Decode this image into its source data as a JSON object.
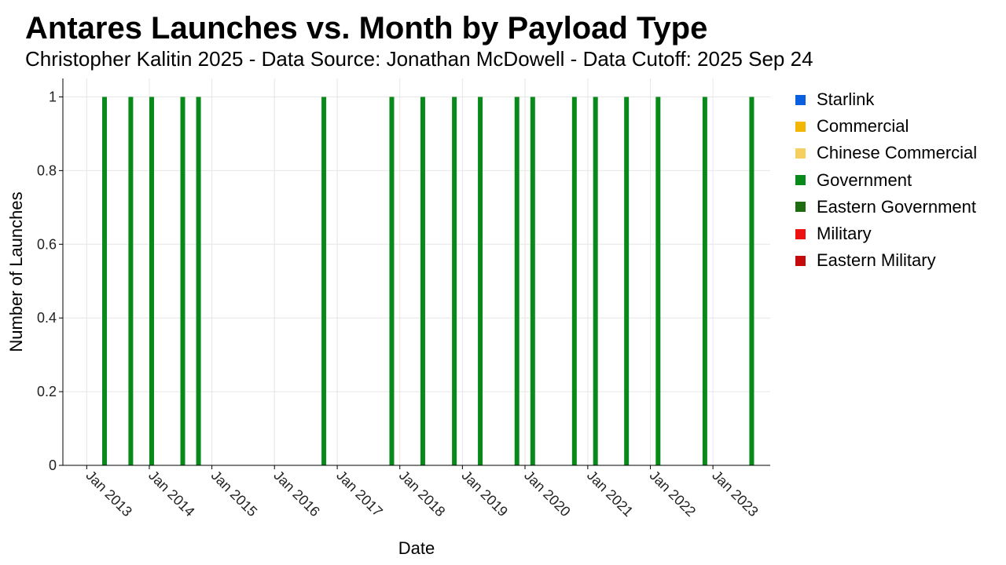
{
  "header": {
    "title": "Antares Launches vs. Month by Payload Type",
    "subtitle": "Christopher Kalitin 2025 - Data Source: Jonathan McDowell - Data Cutoff: 2025 Sep 24"
  },
  "chart_data": {
    "type": "bar",
    "title": "Antares Launches vs. Month by Payload Type",
    "subtitle": "Christopher Kalitin 2025 - Data Source: Jonathan McDowell - Data Cutoff: 2025 Sep 24",
    "xlabel": "Date",
    "ylabel": "Number of Launches",
    "ylim": [
      0,
      1.05
    ],
    "y_ticks": [
      0,
      0.2,
      0.4,
      0.6,
      0.8,
      1
    ],
    "y_tick_labels": [
      "0",
      "0.2",
      "0.4",
      "0.6",
      "0.8",
      "1"
    ],
    "x_range": [
      "2012-08-15",
      "2023-12-01"
    ],
    "x_ticks": [
      "2013-01-01",
      "2014-01-01",
      "2015-01-01",
      "2016-01-01",
      "2017-01-01",
      "2018-01-01",
      "2019-01-01",
      "2020-01-01",
      "2021-01-01",
      "2022-01-01",
      "2023-01-01"
    ],
    "x_tick_labels": [
      "Jan 2013",
      "Jan 2014",
      "Jan 2015",
      "Jan 2016",
      "Jan 2017",
      "Jan 2018",
      "Jan 2019",
      "Jan 2020",
      "Jan 2021",
      "Jan 2022",
      "Jan 2023"
    ],
    "grid": true,
    "legend_position": "right",
    "series": [
      {
        "name": "Starlink",
        "color": "#0a5ee0",
        "points": []
      },
      {
        "name": "Commercial",
        "color": "#f2b705",
        "points": []
      },
      {
        "name": "Chinese Commercial",
        "color": "#f5d060",
        "points": []
      },
      {
        "name": "Government",
        "color": "#078a1a",
        "points": [
          {
            "x": "2013-04",
            "y": 1
          },
          {
            "x": "2013-09",
            "y": 1
          },
          {
            "x": "2014-01",
            "y": 1
          },
          {
            "x": "2014-07",
            "y": 1
          },
          {
            "x": "2014-10",
            "y": 1
          },
          {
            "x": "2016-10",
            "y": 1
          },
          {
            "x": "2017-11",
            "y": 1
          },
          {
            "x": "2018-05",
            "y": 1
          },
          {
            "x": "2018-11",
            "y": 1
          },
          {
            "x": "2019-04",
            "y": 1
          },
          {
            "x": "2019-11",
            "y": 1
          },
          {
            "x": "2020-02",
            "y": 1
          },
          {
            "x": "2020-10",
            "y": 1
          },
          {
            "x": "2021-02",
            "y": 1
          },
          {
            "x": "2021-08",
            "y": 1
          },
          {
            "x": "2022-02",
            "y": 1
          },
          {
            "x": "2022-11",
            "y": 1
          },
          {
            "x": "2023-08",
            "y": 1
          }
        ]
      },
      {
        "name": "Eastern Government",
        "color": "#1f6b0f",
        "points": []
      },
      {
        "name": "Military",
        "color": "#ee1111",
        "points": []
      },
      {
        "name": "Eastern Military",
        "color": "#c40a0a",
        "points": []
      }
    ]
  }
}
